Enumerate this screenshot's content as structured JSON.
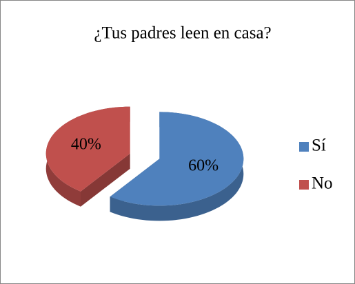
{
  "chart_data": {
    "type": "pie",
    "title": "¿Tus padres leen en casa?",
    "categories": [
      "Sí",
      "No"
    ],
    "values": [
      60,
      40
    ],
    "value_labels": [
      "60%",
      "40%"
    ],
    "colors": [
      "#4f81bd",
      "#c0504d"
    ],
    "legend": "right"
  }
}
